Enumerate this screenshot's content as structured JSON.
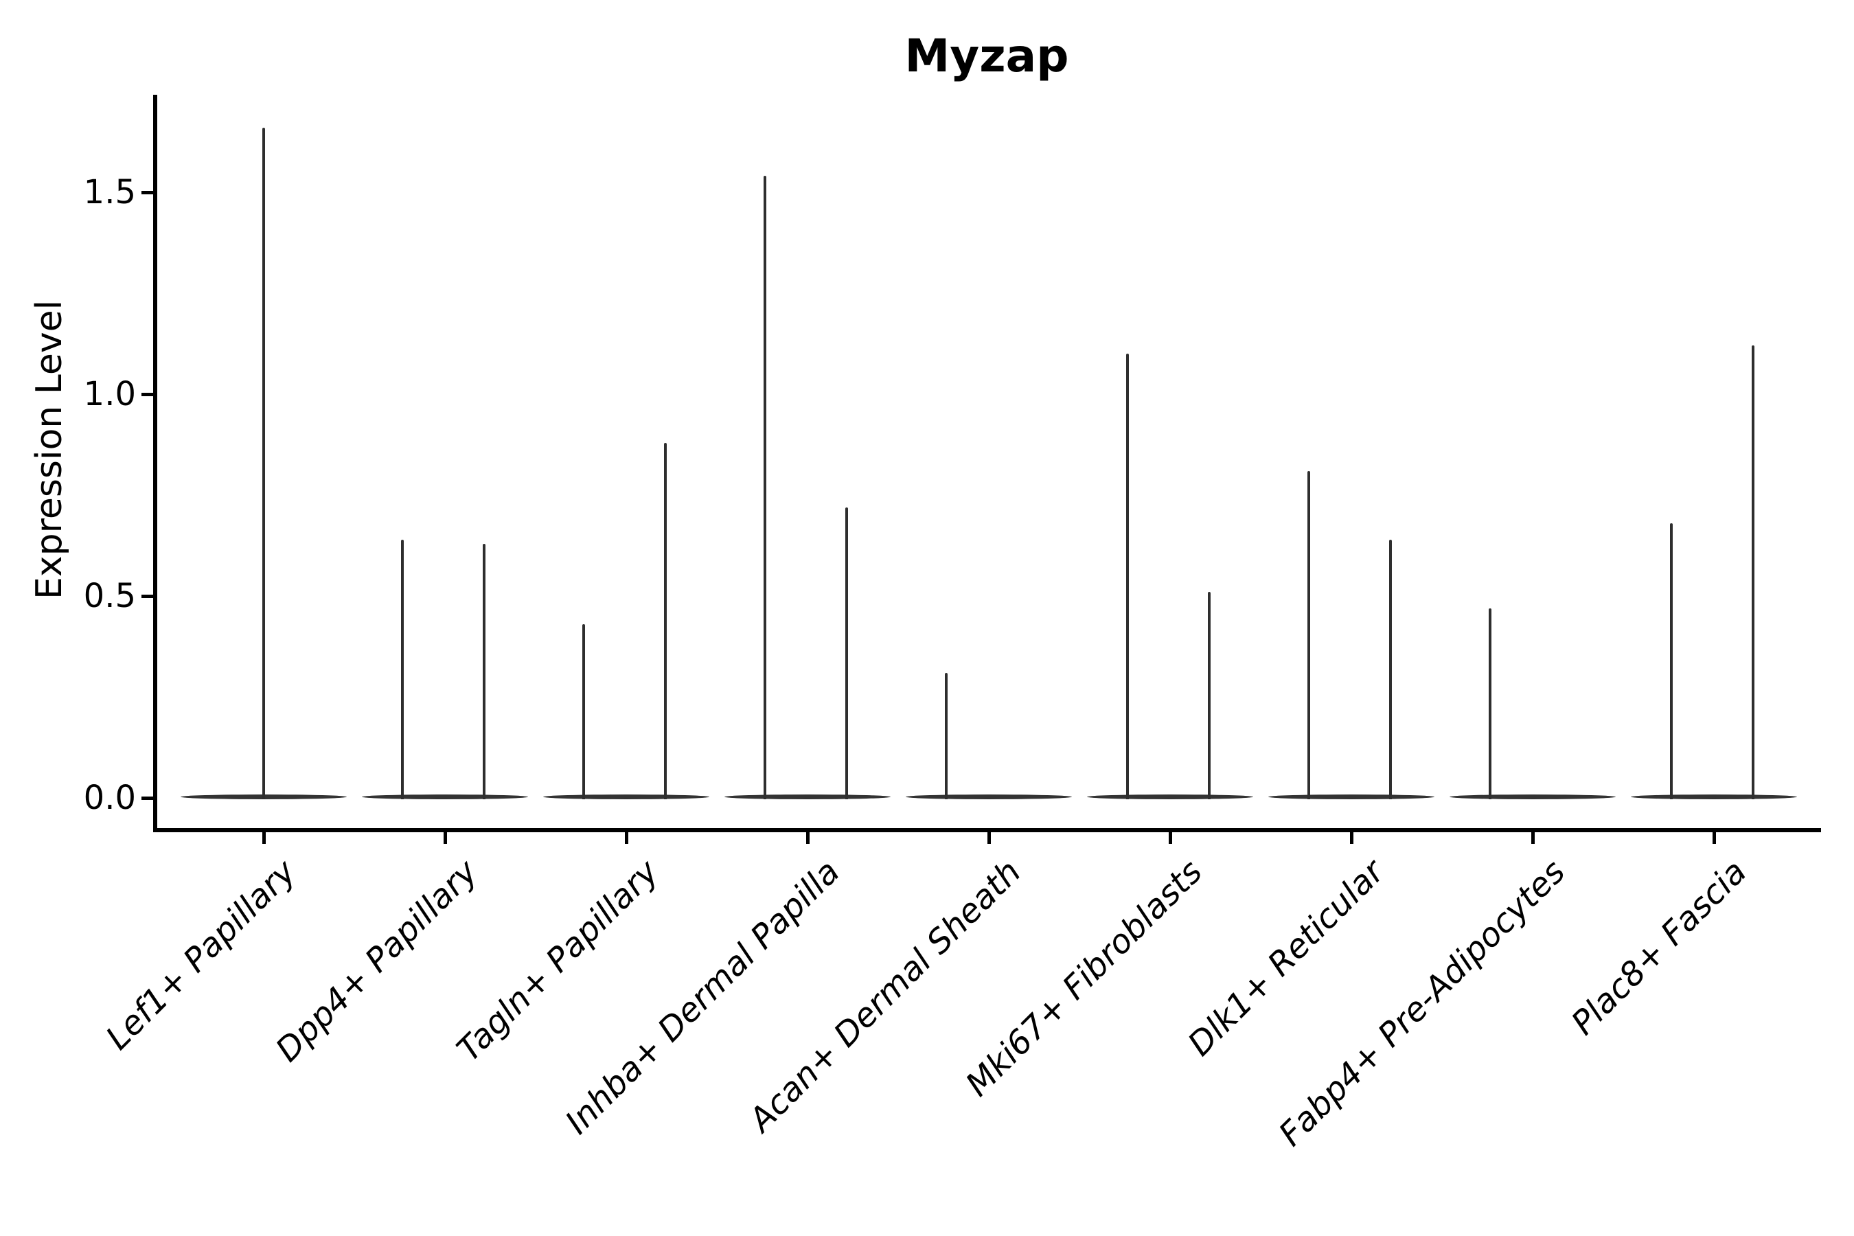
{
  "chart_data": {
    "type": "violin",
    "title": "Myzap",
    "ylabel": "Expression Level",
    "xlabel": "",
    "grid": false,
    "legend": "none",
    "ylim": [
      -0.08,
      1.74
    ],
    "yticks": [
      {
        "value": 0.0,
        "label": "0.0"
      },
      {
        "value": 0.5,
        "label": "0.5"
      },
      {
        "value": 1.0,
        "label": "1.0"
      },
      {
        "value": 1.5,
        "label": "1.5"
      }
    ],
    "categories": [
      "Lef1+ Papillary",
      "Dpp4+ Papillary",
      "Tagln+ Papillary",
      "Inhba+ Dermal Papilla",
      "Acan+ Dermal Sheath",
      "Mki67+ Fibroblasts",
      "Dlk1+ Reticular",
      "Fabp4+ Pre-Adipocytes",
      "Plac8+ Fascia"
    ],
    "groups": [
      {
        "label": "Lef1+ Papillary",
        "spikes": [
          {
            "side": "center",
            "max": 1.66
          }
        ]
      },
      {
        "label": "Dpp4+ Papillary",
        "spikes": [
          {
            "side": "left",
            "max": 0.64
          },
          {
            "side": "right",
            "max": 0.63
          }
        ]
      },
      {
        "label": "Tagln+ Papillary",
        "spikes": [
          {
            "side": "left",
            "max": 0.43
          },
          {
            "side": "right",
            "max": 0.88
          }
        ]
      },
      {
        "label": "Inhba+ Dermal Papilla",
        "spikes": [
          {
            "side": "left",
            "max": 1.54
          },
          {
            "side": "right",
            "max": 0.72
          }
        ]
      },
      {
        "label": "Acan+ Dermal Sheath",
        "spikes": [
          {
            "side": "left",
            "max": 0.31
          }
        ]
      },
      {
        "label": "Mki67+ Fibroblasts",
        "spikes": [
          {
            "side": "left",
            "max": 1.1
          },
          {
            "side": "right",
            "max": 0.51
          }
        ]
      },
      {
        "label": "Dlk1+ Reticular",
        "spikes": [
          {
            "side": "left",
            "max": 0.81
          },
          {
            "side": "right",
            "max": 0.64
          }
        ]
      },
      {
        "label": "Fabp4+ Pre-Adipocytes",
        "spikes": [
          {
            "side": "left",
            "max": 0.47
          }
        ]
      },
      {
        "label": "Plac8+ Fascia",
        "spikes": [
          {
            "side": "left",
            "max": 0.68
          },
          {
            "side": "right",
            "max": 1.12
          }
        ]
      }
    ],
    "colors": {
      "violin": "#2e2e2e",
      "axis": "#000000",
      "text": "#000000",
      "background": "#ffffff"
    },
    "description": "Violin plot of Myzap expression per fibroblast cluster; each violin collapses to a flat base at 0 with thin spikes reaching the maximum expression values."
  }
}
